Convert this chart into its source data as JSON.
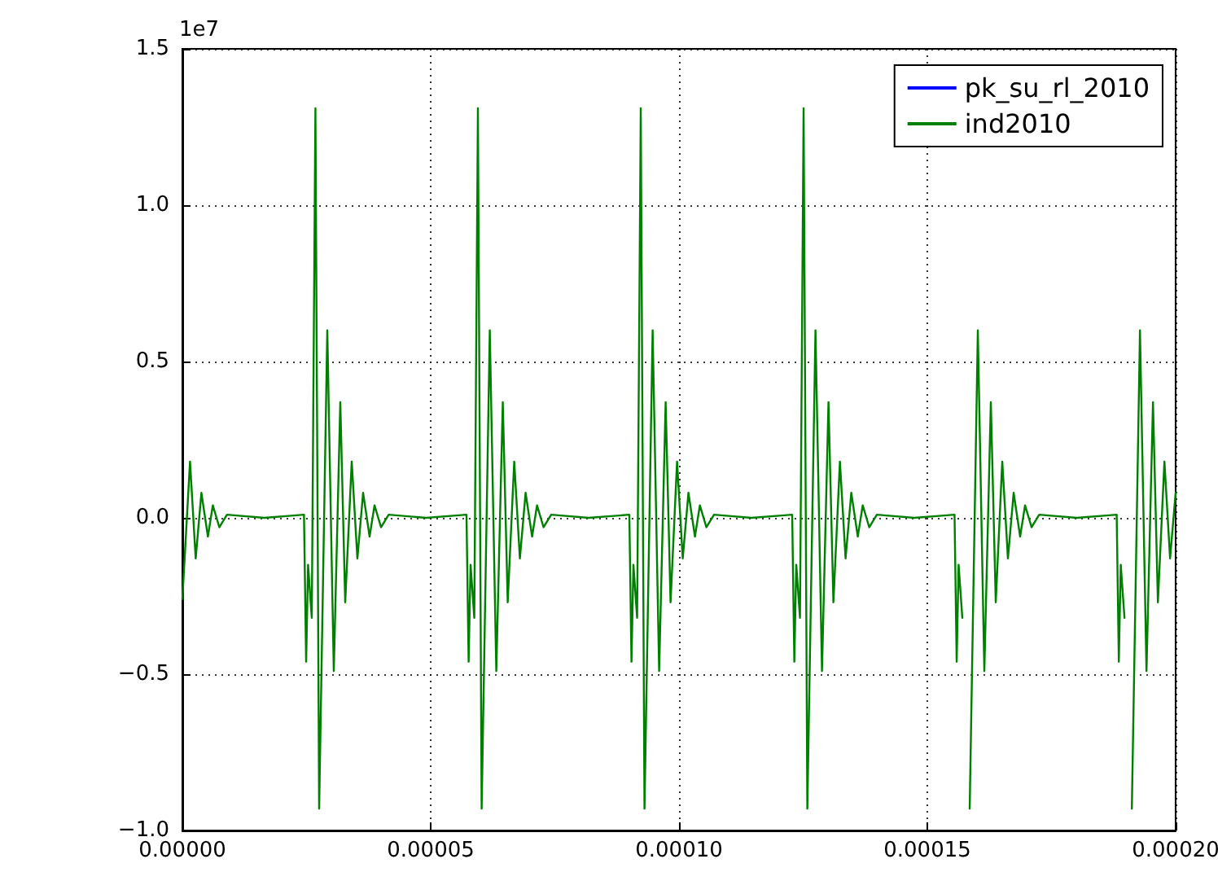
{
  "chart_data": {
    "type": "line",
    "annotations": [
      "1e7"
    ],
    "x": [
      0,
      1.54e-06,
      2.68e-06,
      3.83e-06,
      5.14e-06,
      6.13e-06,
      7.44e-06,
      8.98e-06,
      1.652e-05,
      2.449e-05,
      2.492e-05,
      2.531e-05,
      2.606e-05,
      2.679e-05,
      2.754e-05,
      2.918e-05,
      3.049e-05,
      3.18e-05,
      3.279e-05,
      3.41e-05,
      3.524e-05,
      3.639e-05,
      3.77e-05,
      3.869e-05,
      4e-05,
      4.154e-05,
      4.908e-05,
      5.721e-05,
      5.764e-05,
      5.803e-05,
      5.878e-05,
      5.951e-05,
      6.026e-05,
      6.19e-05,
      6.321e-05,
      6.452e-05,
      6.551e-05,
      6.682e-05,
      6.796e-05,
      6.911e-05,
      7.042e-05,
      7.141e-05,
      7.272e-05,
      7.426e-05,
      8.18e-05,
      9e-05,
      9.043e-05,
      9.082e-05,
      9.157e-05,
      9.23e-05,
      9.305e-05,
      9.469e-05,
      9.6e-05,
      9.731e-05,
      9.83e-05,
      9.961e-05,
      0.00010075,
      0.0001019,
      0.00010321,
      0.0001042,
      0.00010551,
      0.00010705,
      0.00011459,
      0.00012279,
      0.00012322,
      0.00012361,
      0.00012436,
      0.00012509,
      0.00012584,
      0.00012748,
      0.00012879,
      0.0001301,
      0.00013109,
      0.0001324,
      0.00013354,
      0.00013469,
      0.000136,
      0.00013699,
      0.0001383,
      0.00013984,
      0.00014738,
      0.00015548,
      0.00015591,
      0.0001563,
      0.00015705,
      0.00015778,
      0.00015853,
      0.00016017,
      0.00016148,
      0.00016279,
      0.00016378,
      0.00016509,
      0.00016623,
      0.00016738,
      0.00016869,
      0.00016968,
      0.00017099,
      0.00017253,
      0.00018007,
      0.00018813,
      0.00018856,
      0.00018895,
      0.0001897,
      0.00019043,
      0.00019118,
      0.00019282,
      0.00019413,
      0.00019544,
      0.00019643,
      0.00019774,
      0.00019888,
      0.0002
    ],
    "series": [
      {
        "name": "pk_su_rl_2010",
        "color": "#0000ff",
        "values": [
          null,
          null,
          null,
          null,
          null,
          null,
          null,
          null,
          null,
          null,
          null,
          null,
          null,
          null,
          null,
          null,
          null,
          null,
          null,
          null,
          null,
          null,
          null,
          null,
          null,
          null,
          null,
          null,
          null,
          null,
          null,
          null,
          null,
          null,
          null,
          null,
          null,
          null,
          null,
          null,
          null,
          null,
          null,
          null,
          null,
          null,
          null,
          null,
          null,
          null,
          null,
          null,
          null,
          null,
          null,
          null,
          null,
          null,
          null,
          null,
          null,
          null,
          null,
          null,
          null,
          null,
          null,
          null,
          null,
          null,
          null,
          null,
          null,
          null,
          null,
          null,
          null,
          null,
          null,
          null,
          null,
          null,
          null,
          null,
          null,
          null,
          null,
          null,
          null,
          null,
          null,
          null,
          null,
          null,
          null,
          null,
          null,
          null,
          null,
          null,
          null,
          null,
          null,
          null,
          null,
          null,
          null,
          null,
          null,
          null,
          null,
          null
        ]
      },
      {
        "name": "ind2010",
        "color": "#008000",
        "values": [
          -0.26,
          0.18,
          -0.13,
          0.08,
          -0.06,
          0.04,
          -0.03,
          0.01,
          0.0,
          0.01,
          -0.46,
          -0.15,
          -0.32,
          1.31,
          -0.93,
          0.6,
          -0.49,
          0.37,
          -0.27,
          0.18,
          -0.13,
          0.08,
          -0.06,
          0.04,
          -0.03,
          0.01,
          0.0,
          0.01,
          -0.46,
          -0.15,
          -0.32,
          1.31,
          -0.93,
          0.6,
          -0.49,
          0.37,
          -0.27,
          0.18,
          -0.13,
          0.08,
          -0.06,
          0.04,
          -0.03,
          0.01,
          0.0,
          0.01,
          -0.46,
          -0.15,
          -0.32,
          1.31,
          -0.93,
          0.6,
          -0.49,
          0.37,
          -0.27,
          0.18,
          -0.13,
          0.08,
          -0.06,
          0.04,
          -0.03,
          0.01,
          0.0,
          0.01,
          -0.46,
          -0.15,
          -0.32,
          1.31,
          -0.93,
          0.6,
          -0.49,
          0.37,
          -0.27,
          0.18,
          -0.13,
          0.08,
          -0.06,
          0.04,
          -0.03,
          0.01,
          0.0,
          0.01,
          -0.46,
          -0.15,
          -0.32,
          null,
          -0.93,
          0.6,
          -0.49,
          0.37,
          -0.27,
          0.18,
          -0.13,
          0.08,
          -0.06,
          0.04,
          -0.03,
          0.01,
          0.0,
          0.01,
          -0.46,
          -0.15,
          -0.32,
          null,
          -0.93,
          0.6,
          -0.49,
          0.37,
          -0.27,
          0.18,
          -0.13,
          0.08
        ]
      }
    ],
    "xlim": [
      0,
      0.0002
    ],
    "xticks": [
      {
        "value": 0,
        "label": "0.00000"
      },
      {
        "value": 5e-05,
        "label": "0.00005"
      },
      {
        "value": 0.0001,
        "label": "0.00010"
      },
      {
        "value": 0.00015,
        "label": "0.00015"
      },
      {
        "value": 0.0002,
        "label": "0.00020"
      }
    ],
    "ylim": [
      -1,
      1.5
    ],
    "yticks": [
      {
        "value": -1,
        "label": "−1.0"
      },
      {
        "value": -0.5,
        "label": "−0.5"
      },
      {
        "value": 0,
        "label": "0.0"
      },
      {
        "value": 0.5,
        "label": "0.5"
      },
      {
        "value": 1,
        "label": "1.0"
      },
      {
        "value": 1.5,
        "label": "1.5"
      }
    ],
    "grid": true,
    "legend": "top right",
    "marker": "none",
    "line_style": "solid"
  }
}
